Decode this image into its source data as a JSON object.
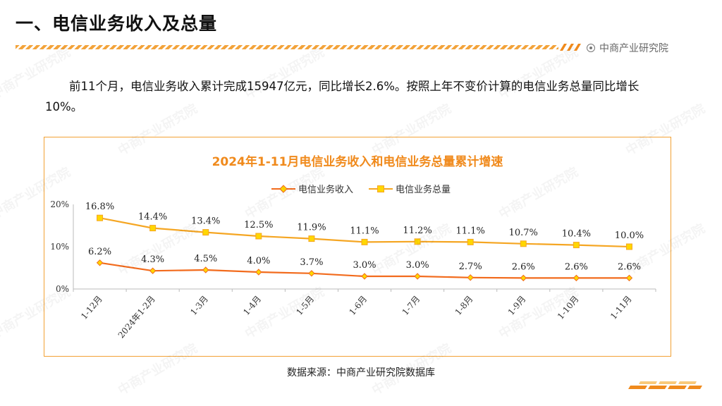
{
  "slide": {
    "title": "一、电信业务收入及总量",
    "brand": "中商产业研究院",
    "summary": "前11个月，电信业务收入累计完成15947亿元，同比增长2.6%。按照上年不变价计算的电信业务总量同比增长10%。",
    "source": "数据来源：中商产业研究院数据库",
    "watermark_text": "中商产业研究院"
  },
  "colors": {
    "accent": "#f08a1c",
    "revenue_line": "#f26b1d",
    "volume_line": "#f5a623",
    "volume_marker": "#ffd700",
    "border": "#f2a134"
  },
  "chart_data": {
    "type": "line",
    "title": "2024年1-11月电信业务收入和电信业务总量累计增速",
    "categories": [
      "1-12月",
      "2024年1-2月",
      "1-3月",
      "1-4月",
      "1-5月",
      "1-6月",
      "1-7月",
      "1-8月",
      "1-9月",
      "1-10月",
      "1-11月"
    ],
    "series": [
      {
        "name": "电信业务收入",
        "values": [
          6.2,
          4.3,
          4.5,
          4.0,
          3.7,
          3.0,
          3.0,
          2.7,
          2.6,
          2.6,
          2.6
        ],
        "labels": [
          "6.2%",
          "4.3%",
          "4.5%",
          "4.0%",
          "3.7%",
          "3.0%",
          "3.0%",
          "2.7%",
          "2.6%",
          "2.6%",
          "2.6%"
        ],
        "marker": "diamond"
      },
      {
        "name": "电信业务总量",
        "values": [
          16.8,
          14.4,
          13.4,
          12.5,
          11.9,
          11.1,
          11.2,
          11.1,
          10.7,
          10.4,
          10.0
        ],
        "labels": [
          "16.8%",
          "14.4%",
          "13.4%",
          "12.5%",
          "11.9%",
          "11.1%",
          "11.2%",
          "11.1%",
          "10.7%",
          "10.4%",
          "10.0%"
        ],
        "marker": "square"
      }
    ],
    "yticks": [
      "0%",
      "10%",
      "20%"
    ],
    "ytick_values": [
      0,
      10,
      20
    ],
    "ylim": [
      0,
      20
    ],
    "grid": false,
    "legend_position": "top-center"
  }
}
